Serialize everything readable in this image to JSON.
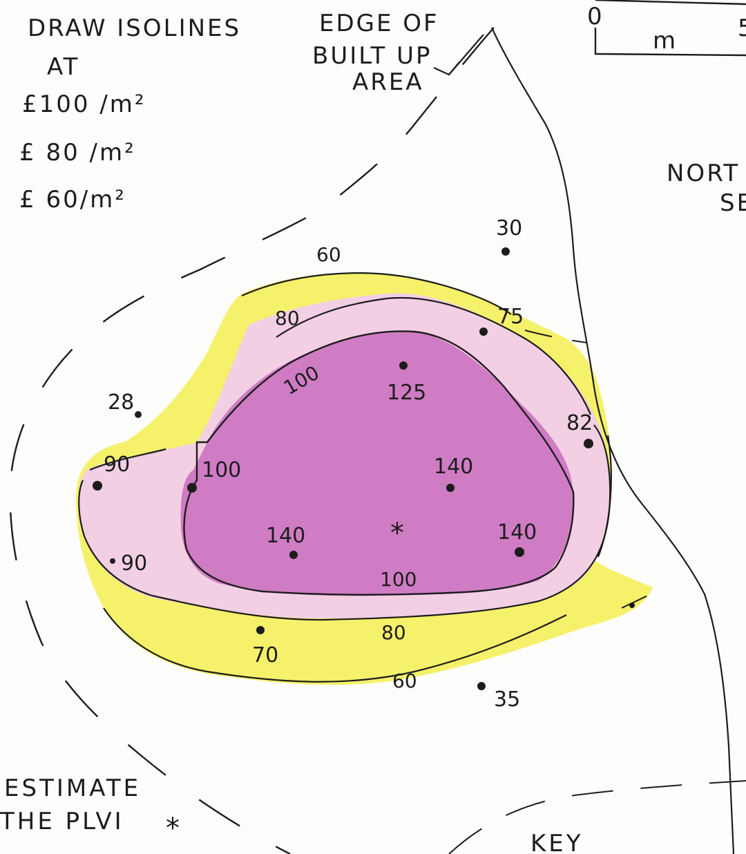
{
  "instructions": {
    "line1": "DRAW ISOLINES",
    "line2": "AT",
    "line3": "£100 /m²",
    "line4": "£ 80 /m²",
    "line5": "£ 60/m²"
  },
  "edge_label": {
    "line1": "EDGE OF",
    "line2": "BUILT UP",
    "line3": "AREA"
  },
  "scale_bar": {
    "zero": "0",
    "unit": "m",
    "end": "5"
  },
  "sea_label": {
    "line1": "NORT",
    "line2": "SE"
  },
  "isoline_labels": {
    "top_60": "60",
    "top_80": "80",
    "nw_100": "100",
    "west_100": "100",
    "south_100": "100",
    "south_80": "80",
    "south_60": "60"
  },
  "land_values": {
    "v30": "30",
    "v75": "75",
    "v125": "125",
    "v28": "28",
    "v82": "82",
    "v90_west": "90",
    "v100_west": "100",
    "v140_centre": "140",
    "v140_left": "140",
    "v140_right": "140",
    "v90_sw": "90",
    "v70": "70",
    "v35": "35"
  },
  "plvi_symbol": "*",
  "estimate_note": {
    "line1": "ESTIMATE",
    "line2": "THE PLVI",
    "symbol": "*"
  },
  "key_label": "KEY",
  "colors": {
    "band_60_80": "#f4ef5a",
    "band_80_100": "#f3cfe3",
    "core_100_plus": "#cf7cc4",
    "ink": "#1c1c1c",
    "paper": "#fdfdfb"
  }
}
